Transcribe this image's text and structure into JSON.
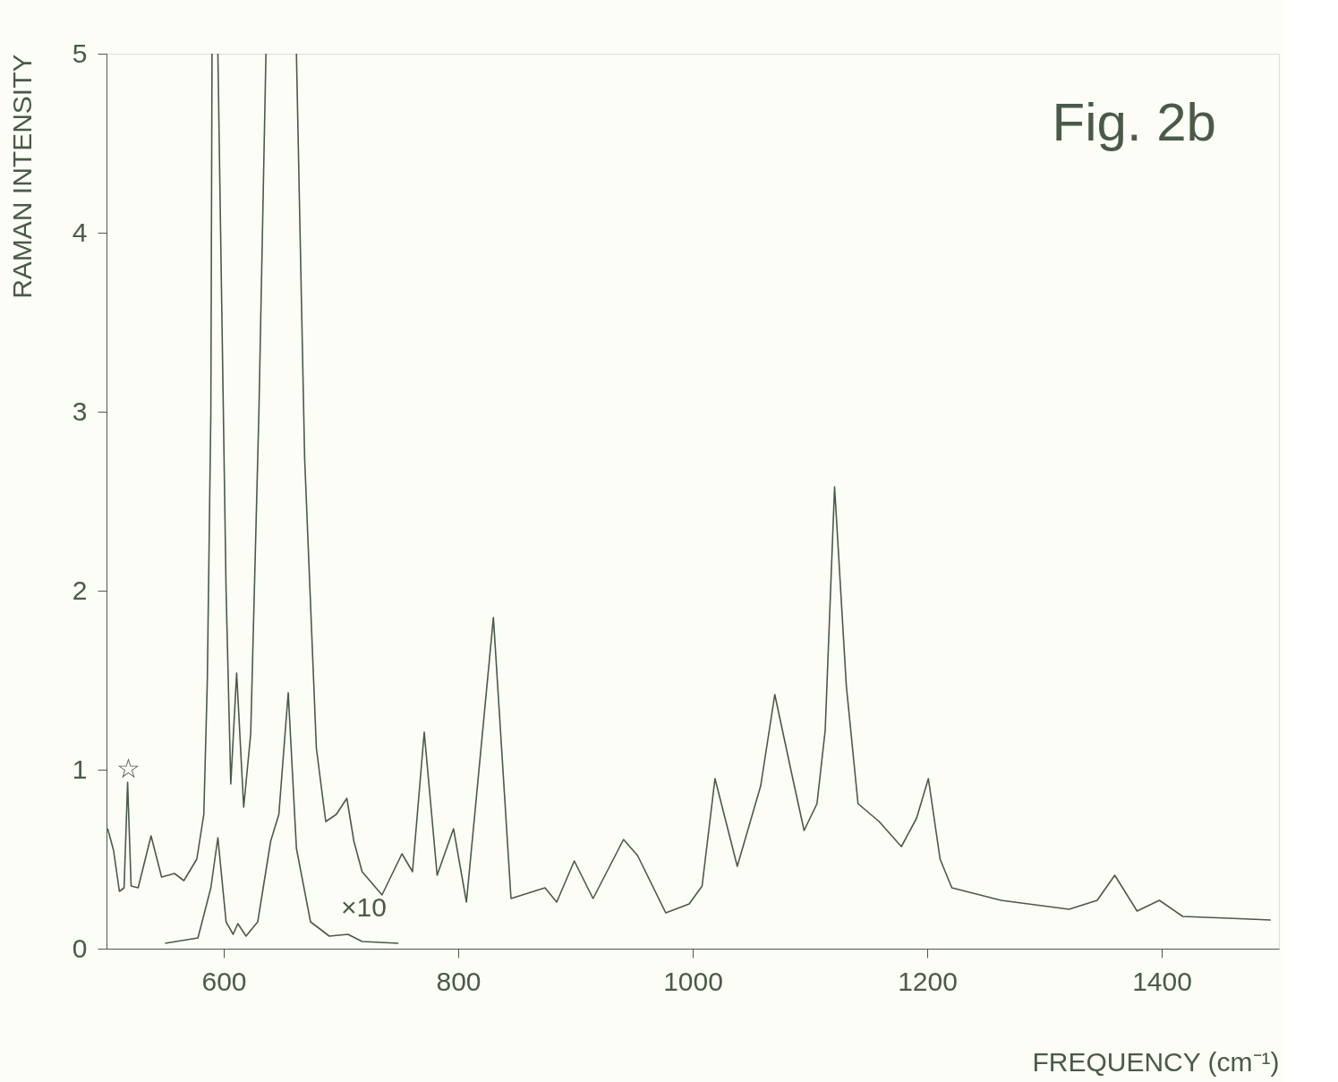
{
  "chart_data": {
    "type": "line",
    "xlabel": "FREQUENCY (cm⁻¹)",
    "ylabel": "RAMAN INTENSITY",
    "xlim": [
      500,
      1500
    ],
    "ylim": [
      0,
      5
    ],
    "xticks": [
      600,
      800,
      1000,
      1200,
      1400
    ],
    "yticks": [
      0,
      1,
      2,
      3,
      4,
      5
    ],
    "grid": false,
    "marker": "none",
    "line_style": "solid",
    "annotations": [
      "Fig. 2b",
      "×10",
      "☆"
    ],
    "series": [
      {
        "color": "#4a5a48",
        "x": [
          501,
          506,
          511,
          515,
          518,
          521,
          527,
          538,
          547,
          558,
          566,
          577,
          583,
          586,
          589,
          590,
          592,
          595,
          602,
          606,
          611,
          617,
          623,
          630,
          636,
          649,
          662,
          669,
          679,
          687,
          696,
          705,
          711,
          718,
          735,
          752,
          761,
          771,
          782,
          796,
          807,
          830,
          845,
          874,
          884,
          899,
          915,
          941,
          953,
          977,
          997,
          1008,
          1019,
          1038,
          1058,
          1070,
          1085,
          1095,
          1106,
          1113,
          1121,
          1131,
          1141,
          1159,
          1178,
          1191,
          1201,
          1211,
          1221,
          1263,
          1321,
          1345,
          1360,
          1379,
          1398,
          1418,
          1457,
          1493
        ],
        "values": [
          0.67,
          0.55,
          0.32,
          0.34,
          0.93,
          0.35,
          0.34,
          0.63,
          0.4,
          0.42,
          0.38,
          0.5,
          0.75,
          1.5,
          3.0,
          5,
          null,
          5,
          2.0,
          0.92,
          1.54,
          0.79,
          1.2,
          3.0,
          5,
          null,
          5,
          2.74,
          1.12,
          0.71,
          0.75,
          0.84,
          0.6,
          0.43,
          0.3,
          0.53,
          0.43,
          1.21,
          0.41,
          0.67,
          0.26,
          1.85,
          0.28,
          0.34,
          0.26,
          0.49,
          0.28,
          0.61,
          0.52,
          0.2,
          0.25,
          0.35,
          0.95,
          0.46,
          0.91,
          1.42,
          0.96,
          0.66,
          0.81,
          1.22,
          2.58,
          1.47,
          0.81,
          0.71,
          0.57,
          0.73,
          0.95,
          0.5,
          0.34,
          0.27,
          0.22,
          0.27,
          0.41,
          0.21,
          0.27,
          0.18,
          0.17,
          0.16
        ]
      },
      {
        "color": "#4a5a48",
        "x": [
          550,
          578,
          589,
          595,
          602,
          608,
          612,
          619,
          629,
          640,
          647,
          655,
          662,
          674,
          690,
          706,
          718,
          749
        ],
        "values": [
          0.03,
          0.06,
          0.34,
          0.62,
          0.15,
          0.08,
          0.14,
          0.07,
          0.15,
          0.6,
          0.75,
          1.43,
          0.56,
          0.15,
          0.07,
          0.08,
          0.04,
          0.03
        ]
      }
    ]
  }
}
